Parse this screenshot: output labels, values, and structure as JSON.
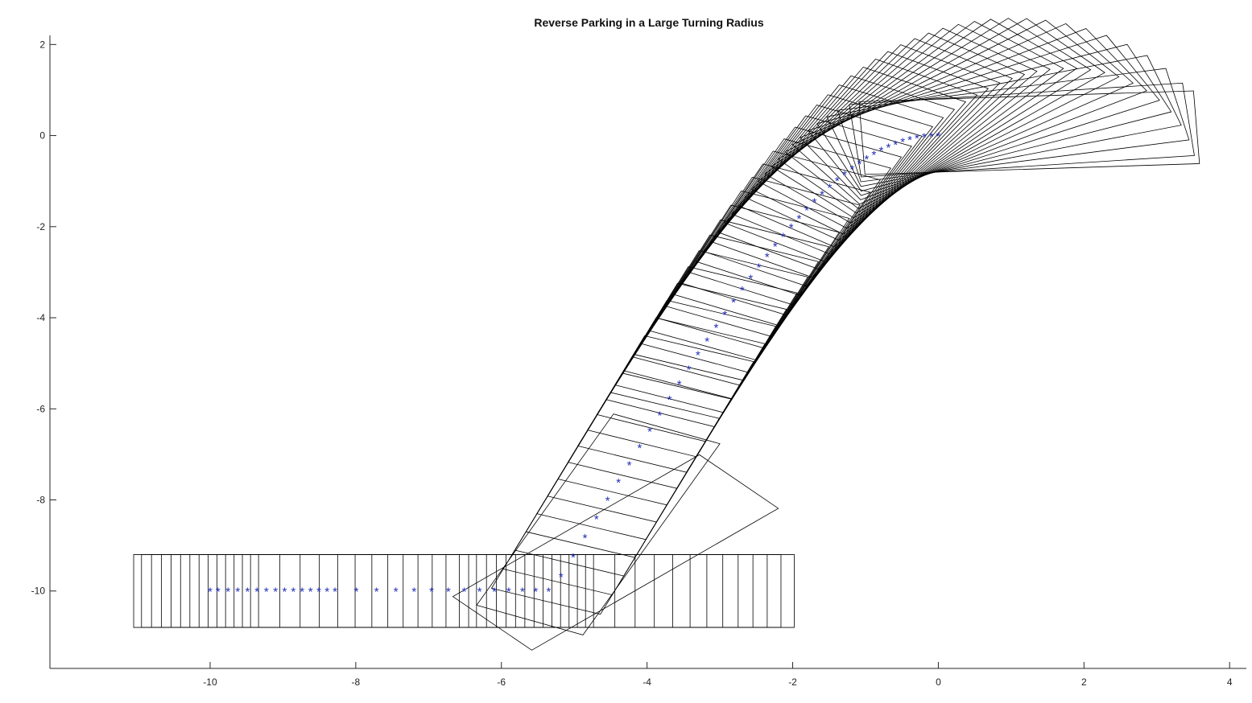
{
  "chart_data": {
    "type": "line",
    "title": "Reverse Parking in a Large Turning Radius",
    "xlabel": "",
    "ylabel": "",
    "xlim": [
      -12.2,
      4.23
    ],
    "ylim": [
      -11.7,
      2.2
    ],
    "x_ticks": [
      -10,
      -8,
      -6,
      -4,
      -2,
      0,
      2,
      4
    ],
    "x_tick_labels": [
      "-10",
      "-8",
      "-6",
      "-4",
      "-2",
      "0",
      "2",
      "4"
    ],
    "y_ticks": [
      2,
      0,
      -2,
      -4,
      -6,
      -8,
      -10
    ],
    "y_tick_labels": [
      "2",
      "0",
      "-2",
      "-4",
      "-6",
      "-8",
      "-10"
    ],
    "grid": false,
    "legend": "none",
    "series": [
      {
        "marker": "*",
        "color": "#1f2fb5",
        "x": [
          0.0,
          -0.097,
          -0.195,
          -0.293,
          -0.391,
          -0.489,
          -0.587,
          -0.686,
          -0.785,
          -0.884,
          -0.984,
          -1.084,
          -1.185,
          -1.287,
          -1.389,
          -1.492,
          -1.596,
          -1.701,
          -1.806,
          -1.913,
          -2.021,
          -2.13,
          -2.24,
          -2.351,
          -2.464,
          -2.578,
          -2.694,
          -2.812,
          -2.931,
          -3.052,
          -3.176,
          -3.301,
          -3.428,
          -3.558,
          -3.69,
          -3.825,
          -3.962,
          -4.102,
          -4.245,
          -4.392,
          -4.542,
          -4.695,
          -4.853,
          -5.014,
          -5.181,
          -5.352,
          -5.529,
          -5.711,
          -5.9,
          -6.096,
          -6.299,
          -6.51,
          -6.729,
          -6.959,
          -7.199,
          -7.45,
          -7.714,
          -7.992,
          -8.285,
          -8.395,
          -8.507,
          -8.621,
          -8.738,
          -8.857,
          -8.978,
          -9.102,
          -9.228,
          -9.356,
          -9.487,
          -9.62,
          -9.755,
          -9.892,
          -10.0
        ],
        "y": [
          0.0,
          -0.005,
          -0.02,
          -0.045,
          -0.08,
          -0.125,
          -0.18,
          -0.245,
          -0.32,
          -0.405,
          -0.5,
          -0.605,
          -0.72,
          -0.845,
          -0.98,
          -1.125,
          -1.28,
          -1.445,
          -1.62,
          -1.805,
          -2.0,
          -2.205,
          -2.42,
          -2.645,
          -2.88,
          -3.125,
          -3.38,
          -3.645,
          -3.92,
          -4.205,
          -4.5,
          -4.805,
          -5.12,
          -5.445,
          -5.78,
          -6.125,
          -6.48,
          -6.845,
          -7.22,
          -7.605,
          -8.0,
          -8.405,
          -8.82,
          -9.245,
          -9.68,
          -10.0,
          -10.0,
          -10.0,
          -10.0,
          -10.0,
          -10.0,
          -10.0,
          -10.0,
          -10.0,
          -10.0,
          -10.0,
          -10.0,
          -10.0,
          -10.0,
          -10.0,
          -10.0,
          -10.0,
          -10.0,
          -10.0,
          -10.0,
          -10.0,
          -10.0,
          -10.0,
          -10.0,
          -10.0,
          -10.0,
          -10.0,
          -10.0
        ]
      }
    ],
    "vehicle_outline": {
      "color": "#000000",
      "length_forward": 3.55,
      "length_back": 1.05,
      "half_width": 0.8
    }
  }
}
